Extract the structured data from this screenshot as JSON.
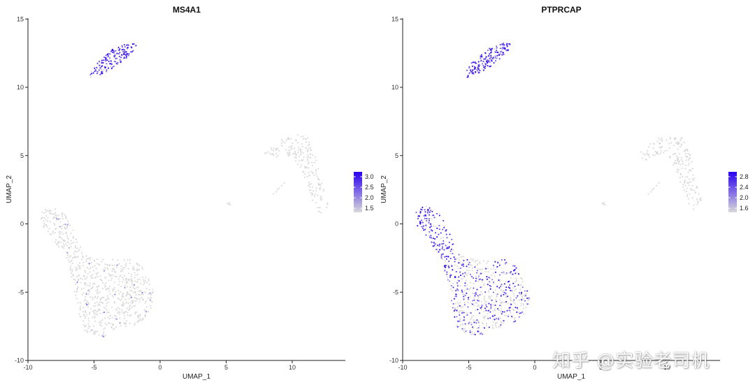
{
  "chart_data": [
    {
      "type": "scatter",
      "title": "MS4A1",
      "xlabel": "UMAP_1",
      "ylabel": "UMAP_2",
      "xlim": [
        -10,
        14
      ],
      "ylim": [
        -10,
        15
      ],
      "xticks": [
        -10,
        -5,
        0,
        5,
        10
      ],
      "xtick_labels": [
        "-10",
        "-5",
        "0",
        "5",
        "10"
      ],
      "yticks": [
        -10,
        -5,
        0,
        5,
        10,
        15
      ],
      "ytick_labels": [
        "-10",
        "-5",
        "0",
        "5",
        "10",
        "15"
      ],
      "grid": false,
      "legend": {
        "position": "right",
        "ticks": [
          3.0,
          2.5,
          2.0,
          1.5
        ],
        "tick_labels": [
          "3.0",
          "2.5",
          "2.0",
          "1.5"
        ],
        "low_color": "#d9d9d9",
        "high_color": "#2a00f0"
      },
      "clusters": [
        {
          "id": "B-cells",
          "center": [
            -3.5,
            11.9
          ],
          "expression": "high",
          "points": 170
        },
        {
          "id": "right-arm",
          "center": [
            10.6,
            4.3
          ],
          "expression": "none",
          "points": 190
        },
        {
          "id": "small-cluster",
          "center": [
            5.2,
            1.5
          ],
          "expression": "none",
          "points": 4
        },
        {
          "id": "T-cells",
          "center": [
            -4.3,
            -4.5
          ],
          "expression": "sparse-low",
          "points": 760
        }
      ]
    },
    {
      "type": "scatter",
      "title": "PTPRCAP",
      "xlabel": "UMAP_1",
      "ylabel": "UMAP_2",
      "xlim": [
        -10,
        14
      ],
      "ylim": [
        -10,
        15
      ],
      "xticks": [
        -10,
        -5,
        0,
        5,
        10
      ],
      "xtick_labels": [
        "-10",
        "-5",
        "0",
        "5",
        "10"
      ],
      "yticks": [
        -10,
        -5,
        0,
        5,
        10,
        15
      ],
      "ytick_labels": [
        "-10",
        "-5",
        "0",
        "5",
        "10",
        "15"
      ],
      "grid": false,
      "legend": {
        "position": "right",
        "ticks": [
          2.8,
          2.4,
          2.0,
          1.6
        ],
        "tick_labels": [
          "2.8",
          "2.4",
          "2.0",
          "1.6"
        ],
        "low_color": "#d9d9d9",
        "high_color": "#2a00f0"
      },
      "clusters": [
        {
          "id": "B-cells",
          "center": [
            -3.5,
            11.9
          ],
          "expression": "high",
          "points": 170
        },
        {
          "id": "right-arm",
          "center": [
            10.6,
            4.3
          ],
          "expression": "none",
          "points": 190
        },
        {
          "id": "small-cluster",
          "center": [
            5.2,
            1.5
          ],
          "expression": "none",
          "points": 4
        },
        {
          "id": "T-cells",
          "center": [
            -4.3,
            -4.5
          ],
          "expression": "high",
          "points": 760
        }
      ]
    }
  ],
  "watermark": "知乎 @实验老司机"
}
